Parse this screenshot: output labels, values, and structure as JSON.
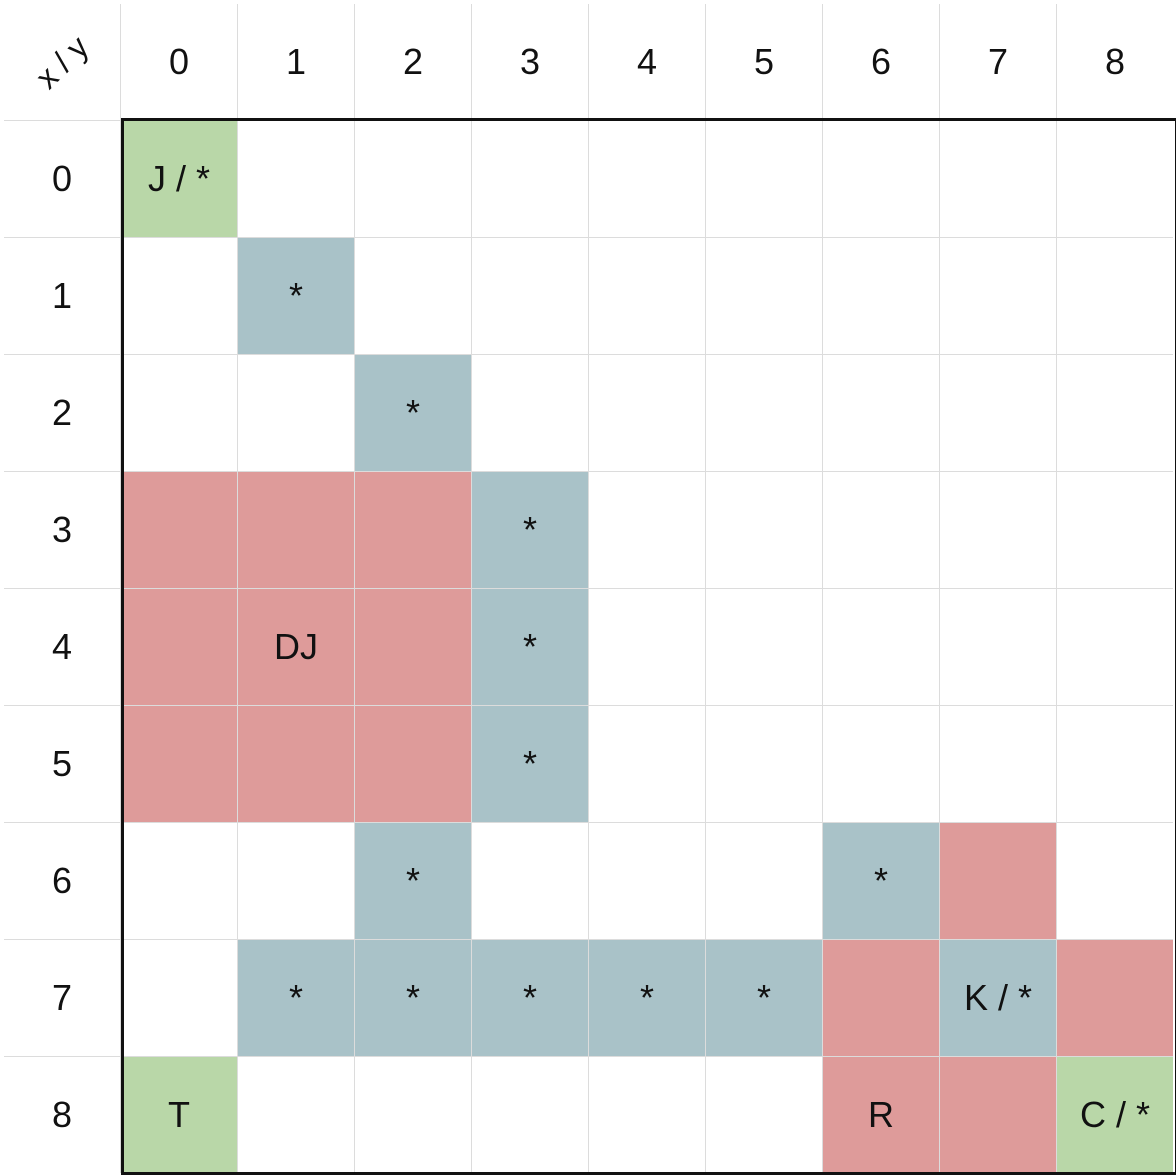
{
  "corner_label": "x / y",
  "col_headers": [
    "0",
    "1",
    "2",
    "3",
    "4",
    "5",
    "6",
    "7",
    "8"
  ],
  "row_headers": [
    "0",
    "1",
    "2",
    "3",
    "4",
    "5",
    "6",
    "7",
    "8"
  ],
  "colors": {
    "green": "#b9d7a8",
    "red": "#de9b9a",
    "blue": "#a9c2c8",
    "empty": "#ffffff"
  },
  "cells": [
    [
      {
        "t": "J / *",
        "c": "green"
      },
      {
        "t": "",
        "c": "empty"
      },
      {
        "t": "",
        "c": "empty"
      },
      {
        "t": "",
        "c": "empty"
      },
      {
        "t": "",
        "c": "empty"
      },
      {
        "t": "",
        "c": "empty"
      },
      {
        "t": "",
        "c": "empty"
      },
      {
        "t": "",
        "c": "empty"
      },
      {
        "t": "",
        "c": "empty"
      }
    ],
    [
      {
        "t": "",
        "c": "empty"
      },
      {
        "t": "*",
        "c": "blue"
      },
      {
        "t": "",
        "c": "empty"
      },
      {
        "t": "",
        "c": "empty"
      },
      {
        "t": "",
        "c": "empty"
      },
      {
        "t": "",
        "c": "empty"
      },
      {
        "t": "",
        "c": "empty"
      },
      {
        "t": "",
        "c": "empty"
      },
      {
        "t": "",
        "c": "empty"
      }
    ],
    [
      {
        "t": "",
        "c": "empty"
      },
      {
        "t": "",
        "c": "empty"
      },
      {
        "t": "*",
        "c": "blue"
      },
      {
        "t": "",
        "c": "empty"
      },
      {
        "t": "",
        "c": "empty"
      },
      {
        "t": "",
        "c": "empty"
      },
      {
        "t": "",
        "c": "empty"
      },
      {
        "t": "",
        "c": "empty"
      },
      {
        "t": "",
        "c": "empty"
      }
    ],
    [
      {
        "t": "",
        "c": "red"
      },
      {
        "t": "",
        "c": "red"
      },
      {
        "t": "",
        "c": "red"
      },
      {
        "t": "*",
        "c": "blue"
      },
      {
        "t": "",
        "c": "empty"
      },
      {
        "t": "",
        "c": "empty"
      },
      {
        "t": "",
        "c": "empty"
      },
      {
        "t": "",
        "c": "empty"
      },
      {
        "t": "",
        "c": "empty"
      }
    ],
    [
      {
        "t": "",
        "c": "red"
      },
      {
        "t": "DJ",
        "c": "red"
      },
      {
        "t": "",
        "c": "red"
      },
      {
        "t": "*",
        "c": "blue"
      },
      {
        "t": "",
        "c": "empty"
      },
      {
        "t": "",
        "c": "empty"
      },
      {
        "t": "",
        "c": "empty"
      },
      {
        "t": "",
        "c": "empty"
      },
      {
        "t": "",
        "c": "empty"
      }
    ],
    [
      {
        "t": "",
        "c": "red"
      },
      {
        "t": "",
        "c": "red"
      },
      {
        "t": "",
        "c": "red"
      },
      {
        "t": "*",
        "c": "blue"
      },
      {
        "t": "",
        "c": "empty"
      },
      {
        "t": "",
        "c": "empty"
      },
      {
        "t": "",
        "c": "empty"
      },
      {
        "t": "",
        "c": "empty"
      },
      {
        "t": "",
        "c": "empty"
      }
    ],
    [
      {
        "t": "",
        "c": "empty"
      },
      {
        "t": "",
        "c": "empty"
      },
      {
        "t": "*",
        "c": "blue"
      },
      {
        "t": "",
        "c": "empty"
      },
      {
        "t": "",
        "c": "empty"
      },
      {
        "t": "",
        "c": "empty"
      },
      {
        "t": "*",
        "c": "blue"
      },
      {
        "t": "",
        "c": "red"
      },
      {
        "t": "",
        "c": "empty"
      }
    ],
    [
      {
        "t": "",
        "c": "empty"
      },
      {
        "t": "*",
        "c": "blue"
      },
      {
        "t": "*",
        "c": "blue"
      },
      {
        "t": "*",
        "c": "blue"
      },
      {
        "t": "*",
        "c": "blue"
      },
      {
        "t": "*",
        "c": "blue"
      },
      {
        "t": "",
        "c": "red"
      },
      {
        "t": "K / *",
        "c": "blue"
      },
      {
        "t": "",
        "c": "red"
      }
    ],
    [
      {
        "t": "T",
        "c": "green"
      },
      {
        "t": "",
        "c": "empty"
      },
      {
        "t": "",
        "c": "empty"
      },
      {
        "t": "",
        "c": "empty"
      },
      {
        "t": "",
        "c": "empty"
      },
      {
        "t": "",
        "c": "empty"
      },
      {
        "t": "R",
        "c": "red"
      },
      {
        "t": "",
        "c": "red"
      },
      {
        "t": "C / *",
        "c": "green"
      }
    ]
  ]
}
